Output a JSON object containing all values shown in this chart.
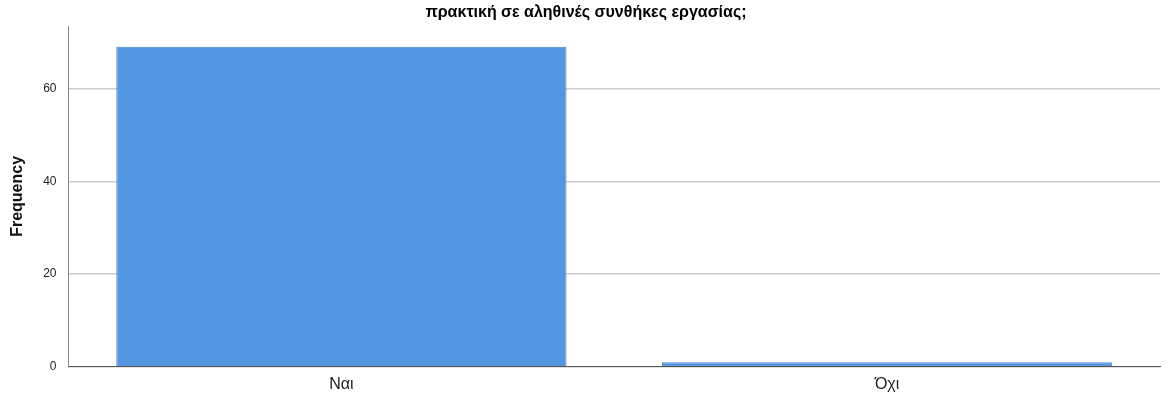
{
  "chart_data": {
    "type": "bar",
    "title": "πρακτική σε αληθινές συνθήκες εργασίας;",
    "ylabel": "Frequency",
    "categories": [
      "Ναι",
      "Όχι"
    ],
    "values": [
      69,
      1
    ],
    "color": "#5596e3",
    "ylim": [
      0,
      73.5
    ],
    "yticks": [
      0,
      20,
      40,
      60
    ],
    "grid": "y"
  }
}
